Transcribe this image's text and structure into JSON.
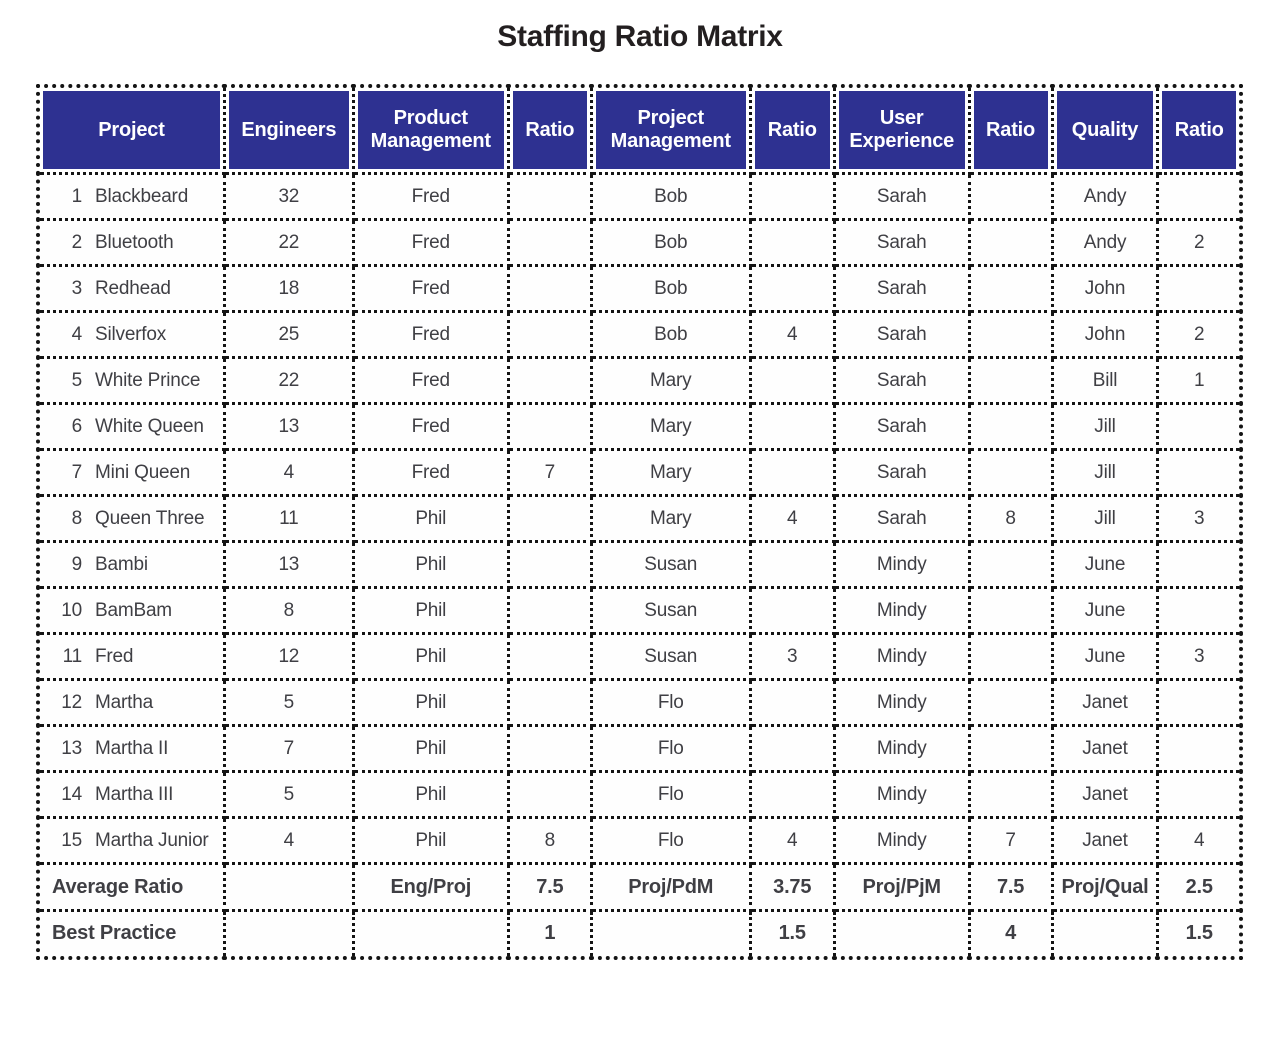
{
  "title": "Staffing Ratio Matrix",
  "colors": {
    "header_bg": "#2E3191",
    "header_text": "#FFFFFF",
    "border": "#141414",
    "body_text": "#3F3F44",
    "title_text": "#231F20"
  },
  "chart_data": {
    "type": "table",
    "title": "Staffing Ratio Matrix",
    "columns": [
      "Project",
      "Engineers",
      "Product Management",
      "Ratio",
      "Project Management",
      "Ratio",
      "User Experience",
      "Ratio",
      "Quality",
      "Ratio"
    ],
    "column_width_percents": [
      15.5,
      10.7,
      12.9,
      6.9,
      13.2,
      7.0,
      11.2,
      6.9,
      8.8,
      6.9
    ],
    "rows": [
      [
        "1",
        "Blackbeard",
        "32",
        "Fred",
        "",
        "Bob",
        "",
        "Sarah",
        "",
        "Andy",
        ""
      ],
      [
        "2",
        "Bluetooth",
        "22",
        "Fred",
        "",
        "Bob",
        "",
        "Sarah",
        "",
        "Andy",
        "2"
      ],
      [
        "3",
        "Redhead",
        "18",
        "Fred",
        "",
        "Bob",
        "",
        "Sarah",
        "",
        "John",
        ""
      ],
      [
        "4",
        "Silverfox",
        "25",
        "Fred",
        "",
        "Bob",
        "4",
        "Sarah",
        "",
        "John",
        "2"
      ],
      [
        "5",
        "White Prince",
        "22",
        "Fred",
        "",
        "Mary",
        "",
        "Sarah",
        "",
        "Bill",
        "1"
      ],
      [
        "6",
        "White Queen",
        "13",
        "Fred",
        "",
        "Mary",
        "",
        "Sarah",
        "",
        "Jill",
        ""
      ],
      [
        "7",
        "Mini Queen",
        "4",
        "Fred",
        "7",
        "Mary",
        "",
        "Sarah",
        "",
        "Jill",
        ""
      ],
      [
        "8",
        "Queen Three",
        "11",
        "Phil",
        "",
        "Mary",
        "4",
        "Sarah",
        "8",
        "Jill",
        "3"
      ],
      [
        "9",
        "Bambi",
        "13",
        "Phil",
        "",
        "Susan",
        "",
        "Mindy",
        "",
        "June",
        ""
      ],
      [
        "10",
        "BamBam",
        "8",
        "Phil",
        "",
        "Susan",
        "",
        "Mindy",
        "",
        "June",
        ""
      ],
      [
        "11",
        "Fred",
        "12",
        "Phil",
        "",
        "Susan",
        "3",
        "Mindy",
        "",
        "June",
        "3"
      ],
      [
        "12",
        "Martha",
        "5",
        "Phil",
        "",
        "Flo",
        "",
        "Mindy",
        "",
        "Janet",
        ""
      ],
      [
        "13",
        "Martha II",
        "7",
        "Phil",
        "",
        "Flo",
        "",
        "Mindy",
        "",
        "Janet",
        ""
      ],
      [
        "14",
        "Martha III",
        "5",
        "Phil",
        "",
        "Flo",
        "",
        "Mindy",
        "",
        "Janet",
        ""
      ],
      [
        "15",
        "Martha Junior",
        "4",
        "Phil",
        "8",
        "Flo",
        "4",
        "Mindy",
        "7",
        "Janet",
        "4"
      ]
    ],
    "footer_rows": [
      [
        "Average Ratio",
        "",
        "Eng/Proj",
        "7.5",
        "Proj/PdM",
        "3.75",
        "Proj/PjM",
        "7.5",
        "Proj/Qual",
        "2.5"
      ],
      [
        "Best Practice",
        "",
        "",
        "1",
        "",
        "1.5",
        "",
        "4",
        "",
        "1.5"
      ]
    ]
  }
}
